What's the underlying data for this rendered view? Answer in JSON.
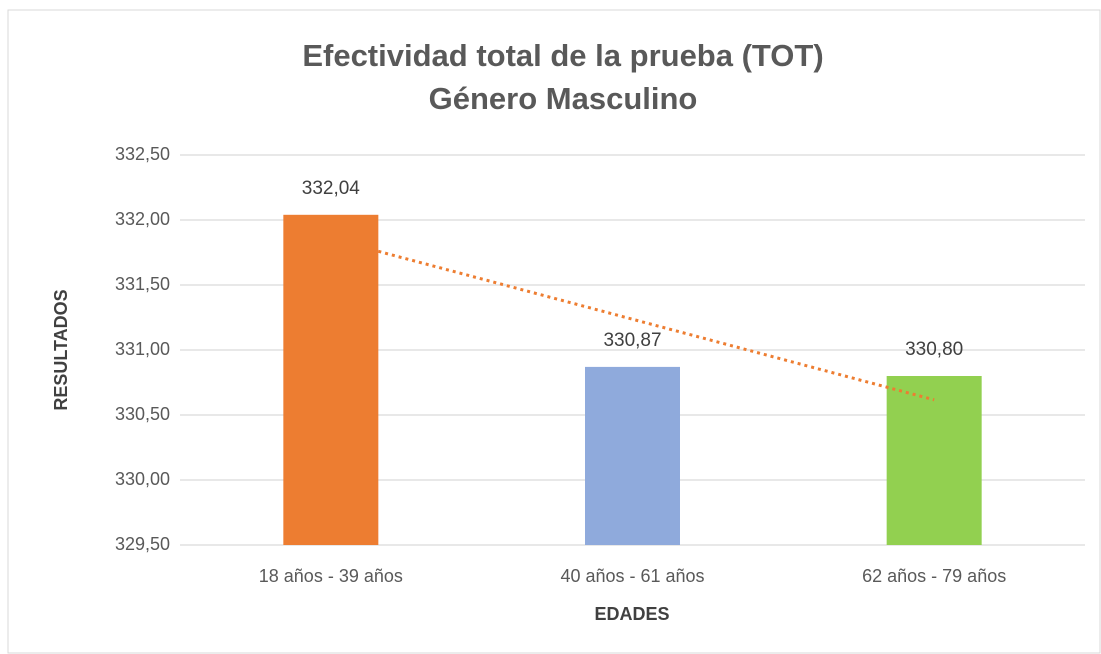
{
  "chart_data": {
    "type": "bar",
    "title": "Efectividad total de la prueba (TOT)",
    "subtitle": "Género Masculino",
    "x_label": "EDADES",
    "y_label": "RESULTADOS",
    "categories": [
      "18 años - 39 años",
      "40 años - 61 años",
      "62 años - 79 años"
    ],
    "values": [
      332.04,
      330.87,
      330.8
    ],
    "value_labels": [
      "332,04",
      "330,87",
      "330,80"
    ],
    "colors": [
      "#ed7d31",
      "#8faadc",
      "#92d050"
    ],
    "ylim": [
      329.5,
      332.5
    ],
    "yticks": [
      {
        "value": 329.5,
        "label": "329,50"
      },
      {
        "value": 330,
        "label": "330,00"
      },
      {
        "value": 330.5,
        "label": "330,50"
      },
      {
        "value": 331,
        "label": "331,00"
      },
      {
        "value": 331.5,
        "label": "331,50"
      },
      {
        "value": 332,
        "label": "332,00"
      },
      {
        "value": 332.5,
        "label": "332,50"
      }
    ],
    "grid": true,
    "trendline": {
      "type": "linear",
      "color": "#ed7d31"
    }
  }
}
